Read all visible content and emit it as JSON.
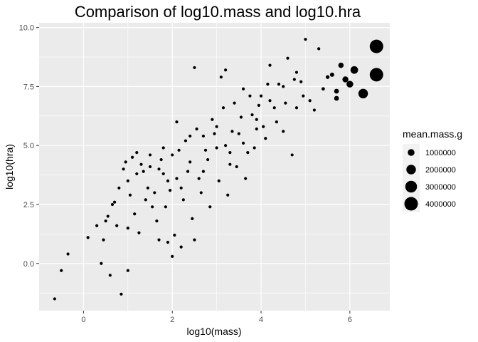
{
  "chart_data": {
    "type": "scatter",
    "title": "Comparison of log10.mass and log10.hra",
    "xlabel": "log10(mass)",
    "ylabel": "log10(hra)",
    "xlim": [
      -1.0,
      6.9
    ],
    "ylim": [
      -2.0,
      10.2
    ],
    "x_ticks": [
      0,
      2,
      4,
      6
    ],
    "y_ticks": [
      0.0,
      2.5,
      5.0,
      7.5,
      10.0
    ],
    "x_tick_labels": [
      "0",
      "2",
      "4",
      "6"
    ],
    "y_tick_labels": [
      "0.0",
      "2.5",
      "5.0",
      "7.5",
      "10.0"
    ],
    "grid": true,
    "legend": {
      "title": "mean.mass.g",
      "placement": "right",
      "labels": [
        "1000000",
        "2000000",
        "3000000",
        "4000000"
      ],
      "values": [
        1000000,
        2000000,
        3000000,
        4000000
      ]
    },
    "colors": {
      "panel": "#ebebeb",
      "grid": "#ffffff",
      "point": "#000000"
    },
    "points": [
      [
        -0.65,
        -1.5,
        0.2
      ],
      [
        -0.5,
        -0.3,
        0.5
      ],
      [
        -0.35,
        0.4,
        0.8
      ],
      [
        0.1,
        1.1,
        1.3
      ],
      [
        0.3,
        1.6,
        2.0
      ],
      [
        0.4,
        0.0,
        2.5
      ],
      [
        0.5,
        1.8,
        3.2
      ],
      [
        0.6,
        -0.5,
        4.0
      ],
      [
        0.65,
        2.5,
        4.5
      ],
      [
        0.8,
        3.2,
        6.3
      ],
      [
        0.85,
        -1.3,
        7.1
      ],
      [
        0.9,
        4.0,
        7.9
      ],
      [
        1.0,
        -0.3,
        10
      ],
      [
        1.0,
        3.5,
        10
      ],
      [
        1.1,
        4.5,
        12.6
      ],
      [
        1.2,
        3.8,
        15.8
      ],
      [
        1.3,
        4.2,
        20
      ],
      [
        1.4,
        2.7,
        25.1
      ],
      [
        1.5,
        4.6,
        31.6
      ],
      [
        1.6,
        3.0,
        39.8
      ],
      [
        1.7,
        4.0,
        50.1
      ],
      [
        1.8,
        4.9,
        63.1
      ],
      [
        1.9,
        3.5,
        79.4
      ],
      [
        2.0,
        4.6,
        100
      ],
      [
        2.0,
        0.3,
        100
      ],
      [
        2.1,
        6.0,
        125.9
      ],
      [
        2.2,
        3.2,
        158.5
      ],
      [
        2.3,
        5.2,
        199.5
      ],
      [
        2.4,
        4.3,
        251.2
      ],
      [
        2.5,
        8.3,
        316.2
      ],
      [
        2.6,
        3.6,
        398.1
      ],
      [
        2.7,
        5.4,
        501.2
      ],
      [
        2.8,
        4.4,
        631
      ],
      [
        2.9,
        6.1,
        794.3
      ],
      [
        3.0,
        4.9,
        1000
      ],
      [
        3.1,
        7.9,
        1258.9
      ],
      [
        3.2,
        5.0,
        1584.9
      ],
      [
        3.3,
        4.2,
        1995.3
      ],
      [
        3.4,
        6.8,
        2511.9
      ],
      [
        3.5,
        5.5,
        3162.3
      ],
      [
        3.6,
        7.4,
        3981.1
      ],
      [
        3.7,
        4.7,
        5011.9
      ],
      [
        3.8,
        6.3,
        6309.6
      ],
      [
        3.9,
        5.7,
        7943.3
      ],
      [
        4.0,
        7.1,
        10000
      ],
      [
        4.1,
        5.3,
        12589.3
      ],
      [
        4.2,
        8.4,
        15848.9
      ],
      [
        4.3,
        6.6,
        19952.6
      ],
      [
        4.4,
        7.6,
        25118.9
      ],
      [
        4.5,
        5.6,
        31622.8
      ],
      [
        4.6,
        8.7,
        39810.7
      ],
      [
        4.7,
        4.6,
        50118.7
      ],
      [
        4.8,
        6.6,
        63095.7
      ],
      [
        4.9,
        7.7,
        79432.8
      ],
      [
        5.0,
        9.5,
        100000
      ],
      [
        5.1,
        6.9,
        125892.5
      ],
      [
        5.2,
        6.5,
        158489.3
      ],
      [
        5.3,
        9.1,
        199526.2
      ],
      [
        5.4,
        7.4,
        251188.6
      ],
      [
        5.5,
        7.9,
        316227.8
      ],
      [
        5.6,
        8.0,
        398107.2
      ],
      [
        5.7,
        7.3,
        501187.2
      ],
      [
        5.8,
        8.4,
        630957.3
      ],
      [
        5.9,
        7.8,
        794328.2
      ],
      [
        6.0,
        7.6,
        1000000
      ],
      [
        6.1,
        8.2,
        1258925.4
      ],
      [
        6.3,
        7.2,
        1995262.3
      ],
      [
        6.6,
        9.2,
        3981071.7
      ],
      [
        6.6,
        8.0,
        3981071.7
      ],
      [
        5.7,
        7.0,
        501187.2
      ],
      [
        1.25,
        1.3,
        17.8
      ],
      [
        1.45,
        3.2,
        28.2
      ],
      [
        1.65,
        1.8,
        44.7
      ],
      [
        1.85,
        2.4,
        70.8
      ],
      [
        2.05,
        1.2,
        112.2
      ],
      [
        2.25,
        2.7,
        177.8
      ],
      [
        2.45,
        1.9,
        281.8
      ],
      [
        2.65,
        3.0,
        446.7
      ],
      [
        2.85,
        2.4,
        707.9
      ],
      [
        3.05,
        3.5,
        1122
      ],
      [
        3.25,
        2.9,
        1778.3
      ],
      [
        3.45,
        4.1,
        2818.4
      ],
      [
        3.65,
        3.6,
        4466.8
      ],
      [
        3.85,
        4.9,
        7079.5
      ],
      [
        4.05,
        5.8,
        11220.2
      ],
      [
        1.15,
        2.1,
        14.1
      ],
      [
        1.35,
        3.9,
        22.4
      ],
      [
        1.55,
        2.4,
        35.5
      ],
      [
        1.75,
        4.4,
        56.2
      ],
      [
        1.95,
        3.1,
        89.1
      ],
      [
        2.15,
        4.8,
        141.3
      ],
      [
        2.35,
        3.9,
        223.9
      ],
      [
        2.55,
        5.7,
        354.8
      ],
      [
        2.75,
        4.8,
        562.3
      ],
      [
        2.95,
        5.5,
        891.3
      ],
      [
        3.15,
        6.6,
        1412.5
      ],
      [
        3.35,
        5.6,
        2238.7
      ],
      [
        3.55,
        6.2,
        3548.1
      ],
      [
        3.75,
        7.1,
        5623.4
      ],
      [
        3.95,
        6.7,
        8912.5
      ],
      [
        4.15,
        7.6,
        14125.4
      ],
      [
        4.35,
        6.0,
        22387.2
      ],
      [
        4.55,
        6.8,
        35481.3
      ],
      [
        4.75,
        7.8,
        56234.1
      ],
      [
        4.95,
        7.1,
        89125.1
      ],
      [
        0.95,
        4.3,
        8.9
      ],
      [
        1.05,
        2.9,
        11.2
      ],
      [
        1.2,
        4.7,
        15.8
      ],
      [
        1.5,
        4.1,
        31.6
      ],
      [
        1.8,
        3.8,
        63.1
      ],
      [
        2.1,
        3.6,
        125.9
      ],
      [
        2.4,
        5.4,
        251.2
      ],
      [
        2.7,
        3.9,
        501.2
      ],
      [
        3.0,
        5.8,
        1000
      ],
      [
        3.3,
        4.7,
        1995.3
      ],
      [
        3.6,
        5.1,
        3981.1
      ],
      [
        3.9,
        6.1,
        7943.3
      ],
      [
        4.2,
        6.9,
        15848.9
      ],
      [
        4.5,
        7.5,
        31622.8
      ],
      [
        4.8,
        8.1,
        63095.7
      ],
      [
        1.7,
        1.0,
        50.1
      ],
      [
        1.9,
        0.9,
        79.4
      ],
      [
        2.2,
        0.7,
        158.5
      ],
      [
        2.5,
        1.0,
        316.2
      ],
      [
        0.55,
        2.0,
        3.5
      ],
      [
        0.75,
        1.6,
        5.6
      ],
      [
        0.7,
        2.6,
        5.0
      ],
      [
        1.0,
        1.5,
        10
      ],
      [
        0.45,
        1.0,
        2.8
      ],
      [
        3.2,
        8.2,
        1584.9
      ]
    ]
  }
}
